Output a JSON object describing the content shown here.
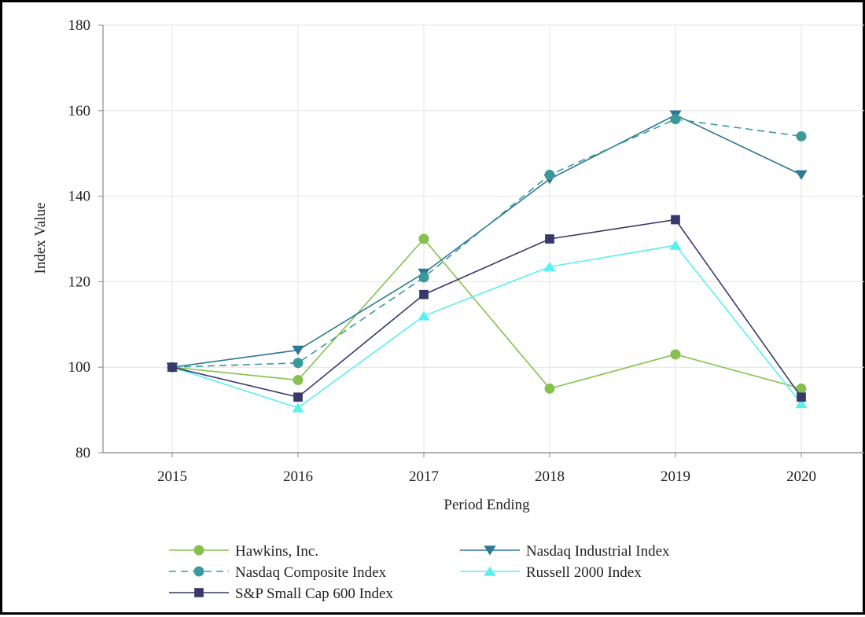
{
  "chart_data": {
    "type": "line",
    "title": "",
    "xlabel": "Period Ending",
    "ylabel": "Index Value",
    "categories": [
      "2015",
      "2016",
      "2017",
      "2018",
      "2019",
      "2020"
    ],
    "ylim": [
      80,
      180
    ],
    "yticks": [
      80,
      100,
      120,
      140,
      160,
      180
    ],
    "grid": true,
    "legend_position": "bottom",
    "series": [
      {
        "name": "Hawkins, Inc.",
        "values": [
          100,
          97,
          130,
          95,
          103,
          95
        ],
        "color": "#86c04e",
        "marker": "circle",
        "dashed": false
      },
      {
        "name": "Nasdaq Industrial Index",
        "values": [
          100,
          104,
          122,
          144,
          159,
          145
        ],
        "color": "#2e7896",
        "marker": "triangle-down",
        "dashed": false
      },
      {
        "name": "Nasdaq Composite Index",
        "values": [
          100,
          101,
          121,
          145,
          158,
          154
        ],
        "color": "#3a9a9a",
        "marker": "circle",
        "dashed": true
      },
      {
        "name": "Russell 2000 Index",
        "values": [
          100,
          90.5,
          112,
          123.5,
          128.5,
          91.5
        ],
        "color": "#5af0f0",
        "marker": "triangle-up",
        "dashed": false
      },
      {
        "name": "S&P Small Cap 600 Index",
        "values": [
          100,
          93,
          117,
          130,
          134.5,
          93
        ],
        "color": "#38386a",
        "marker": "square",
        "dashed": false
      }
    ]
  }
}
